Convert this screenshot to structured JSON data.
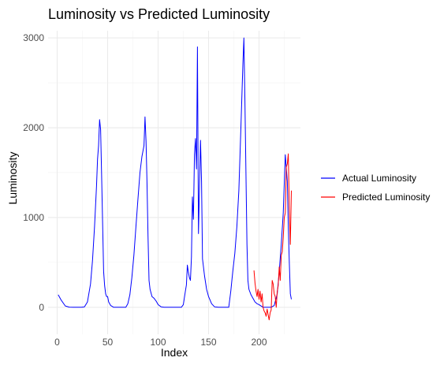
{
  "chart_data": {
    "type": "line",
    "title": "Luminosity vs Predicted Luminosity",
    "xlabel": "Index",
    "ylabel": "Luminosity",
    "xlim": [
      -9,
      241
    ],
    "ylim": [
      -300,
      3080
    ],
    "x_ticks": [
      0,
      50,
      100,
      150,
      200
    ],
    "y_ticks": [
      0,
      1000,
      2000,
      3000
    ],
    "grid": true,
    "legend_position": "right",
    "series": [
      {
        "name": "Actual Luminosity",
        "color": "#0000ff",
        "points": [
          [
            1,
            140
          ],
          [
            4,
            80
          ],
          [
            8,
            15
          ],
          [
            12,
            2
          ],
          [
            16,
            0
          ],
          [
            20,
            0
          ],
          [
            24,
            0
          ],
          [
            27,
            5
          ],
          [
            30,
            60
          ],
          [
            33,
            260
          ],
          [
            35,
            520
          ],
          [
            37,
            900
          ],
          [
            39,
            1350
          ],
          [
            40,
            1650
          ],
          [
            41,
            1800
          ],
          [
            42,
            2090
          ],
          [
            43,
            1980
          ],
          [
            44,
            1500
          ],
          [
            45,
            950
          ],
          [
            46,
            400
          ],
          [
            47,
            240
          ],
          [
            48,
            150
          ],
          [
            49,
            120
          ],
          [
            50,
            120
          ],
          [
            51,
            60
          ],
          [
            53,
            20
          ],
          [
            56,
            0
          ],
          [
            60,
            0
          ],
          [
            64,
            0
          ],
          [
            68,
            0
          ],
          [
            70,
            40
          ],
          [
            72,
            140
          ],
          [
            74,
            330
          ],
          [
            76,
            580
          ],
          [
            78,
            900
          ],
          [
            80,
            1200
          ],
          [
            82,
            1500
          ],
          [
            84,
            1680
          ],
          [
            86,
            1800
          ],
          [
            87,
            2120
          ],
          [
            88,
            1850
          ],
          [
            89,
            1400
          ],
          [
            90,
            800
          ],
          [
            91,
            300
          ],
          [
            92,
            200
          ],
          [
            94,
            120
          ],
          [
            96,
            100
          ],
          [
            98,
            70
          ],
          [
            100,
            30
          ],
          [
            103,
            5
          ],
          [
            106,
            0
          ],
          [
            110,
            0
          ],
          [
            115,
            0
          ],
          [
            120,
            0
          ],
          [
            123,
            0
          ],
          [
            125,
            30
          ],
          [
            127,
            180
          ],
          [
            128,
            250
          ],
          [
            129,
            470
          ],
          [
            130,
            390
          ],
          [
            131,
            330
          ],
          [
            132,
            300
          ],
          [
            133,
            560
          ],
          [
            134,
            1230
          ],
          [
            135,
            980
          ],
          [
            136,
            1700
          ],
          [
            137,
            1880
          ],
          [
            138,
            1540
          ],
          [
            139,
            2900
          ],
          [
            140,
            820
          ],
          [
            141,
            1350
          ],
          [
            142,
            1860
          ],
          [
            143,
            1400
          ],
          [
            144,
            540
          ],
          [
            146,
            350
          ],
          [
            148,
            200
          ],
          [
            150,
            120
          ],
          [
            153,
            40
          ],
          [
            156,
            5
          ],
          [
            160,
            0
          ],
          [
            165,
            0
          ],
          [
            170,
            0
          ],
          [
            172,
            180
          ],
          [
            174,
            400
          ],
          [
            176,
            600
          ],
          [
            178,
            900
          ],
          [
            180,
            1300
          ],
          [
            182,
            2000
          ],
          [
            184,
            2700
          ],
          [
            185,
            3000
          ],
          [
            186,
            2300
          ],
          [
            187,
            1500
          ],
          [
            188,
            700
          ],
          [
            189,
            300
          ],
          [
            190,
            200
          ],
          [
            192,
            140
          ],
          [
            194,
            100
          ],
          [
            196,
            60
          ],
          [
            198,
            40
          ],
          [
            200,
            30
          ],
          [
            204,
            0
          ],
          [
            208,
            0
          ],
          [
            212,
            0
          ],
          [
            215,
            20
          ],
          [
            218,
            150
          ],
          [
            220,
            400
          ],
          [
            222,
            700
          ],
          [
            224,
            1050
          ],
          [
            226,
            1700
          ],
          [
            227,
            1550
          ],
          [
            228,
            1400
          ],
          [
            229,
            900
          ],
          [
            230,
            500
          ],
          [
            231,
            150
          ],
          [
            232,
            90
          ]
        ]
      },
      {
        "name": "Predicted Luminosity",
        "color": "#ff0000",
        "points": [
          [
            195,
            410
          ],
          [
            196,
            270
          ],
          [
            197,
            180
          ],
          [
            198,
            120
          ],
          [
            199,
            200
          ],
          [
            200,
            90
          ],
          [
            201,
            180
          ],
          [
            202,
            60
          ],
          [
            203,
            150
          ],
          [
            204,
            0
          ],
          [
            205,
            -40
          ],
          [
            206,
            -60
          ],
          [
            207,
            -100
          ],
          [
            208,
            -20
          ],
          [
            209,
            -80
          ],
          [
            210,
            -140
          ],
          [
            211,
            -60
          ],
          [
            212,
            -30
          ],
          [
            213,
            300
          ],
          [
            214,
            260
          ],
          [
            215,
            150
          ],
          [
            216,
            120
          ],
          [
            217,
            0
          ],
          [
            218,
            180
          ],
          [
            219,
            240
          ],
          [
            220,
            450
          ],
          [
            221,
            300
          ],
          [
            222,
            580
          ],
          [
            223,
            620
          ],
          [
            224,
            780
          ],
          [
            225,
            1000
          ],
          [
            226,
            1050
          ],
          [
            227,
            1560
          ],
          [
            228,
            1600
          ],
          [
            229,
            1710
          ],
          [
            230,
            1100
          ],
          [
            231,
            700
          ],
          [
            232,
            1300
          ]
        ]
      }
    ]
  }
}
